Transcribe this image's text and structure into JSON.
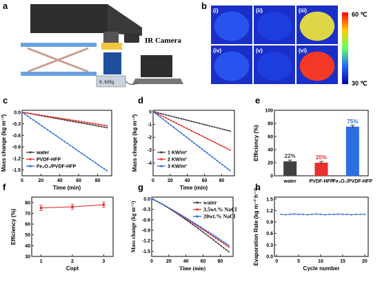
{
  "panels": {
    "a": {
      "label": "a",
      "camera_label": "IR Camera",
      "scale_reading": "9.835g"
    },
    "b": {
      "label": "b",
      "tiles": [
        "(i)",
        "(ii)",
        "(iii)",
        "(iv)",
        "(v)",
        "(vi)"
      ],
      "scale_max": "60 ℃",
      "scale_min": "30 ℃",
      "tile_colors": [
        "#2a55f0",
        "#1e3fe0",
        "#e8e040",
        "#2a55f0",
        "#1e3fe0",
        "#ff3a1e"
      ]
    }
  },
  "chart_data": [
    {
      "id": "c",
      "type": "line",
      "label": "c",
      "xlabel": "Time (min)",
      "ylabel": "Mass change (kg m⁻²)",
      "xlim": [
        0,
        95
      ],
      "ylim": [
        -1.65,
        0.05
      ],
      "xticks": [
        "0",
        "20",
        "40",
        "60",
        "80"
      ],
      "xtick_values": [
        0,
        20,
        40,
        60,
        80
      ],
      "yticks": [
        "0.0",
        "-0.3",
        "-0.6",
        "-0.9",
        "-1.2",
        "-1.5"
      ],
      "ytick_values": [
        0,
        -0.3,
        -0.6,
        -0.9,
        -1.2,
        -1.5
      ],
      "legend_position": "lower-left",
      "series": [
        {
          "name": "water",
          "color": "#404040",
          "x": [
            0,
            90
          ],
          "y": [
            0,
            -0.4
          ]
        },
        {
          "name": "PVDF-HFP",
          "color": "#e8312f",
          "x": [
            0,
            90
          ],
          "y": [
            0,
            -0.35
          ]
        },
        {
          "name": "Fe₃O₄/PVDF-HFP",
          "color": "#2c6fe0",
          "x": [
            0,
            90
          ],
          "y": [
            0,
            -1.52
          ]
        }
      ]
    },
    {
      "id": "d",
      "type": "line",
      "label": "d",
      "xlabel": "Time (min)",
      "ylabel": "Mass change (kg m⁻²)",
      "xlim": [
        0,
        95
      ],
      "ylim": [
        -5.0,
        0.1
      ],
      "xticks": [
        "0",
        "20",
        "40",
        "60",
        "80"
      ],
      "xtick_values": [
        0,
        20,
        40,
        60,
        80
      ],
      "yticks": [
        "0",
        "-1",
        "-2",
        "-3",
        "-4"
      ],
      "ytick_values": [
        0,
        -1,
        -2,
        -3,
        -4
      ],
      "legend_position": "lower-left",
      "series": [
        {
          "name": "1 KW/m²",
          "color": "#404040",
          "x": [
            0,
            90
          ],
          "y": [
            0,
            -1.52
          ]
        },
        {
          "name": "2 KW/m²",
          "color": "#e8312f",
          "x": [
            0,
            90
          ],
          "y": [
            0,
            -3.0
          ]
        },
        {
          "name": "3 KW/m²",
          "color": "#2c6fe0",
          "x": [
            0,
            90
          ],
          "y": [
            0,
            -4.6
          ]
        }
      ]
    },
    {
      "id": "e",
      "type": "bar",
      "label": "e",
      "ylabel": "Efficiency (%)",
      "ylim": [
        0,
        100
      ],
      "yticks": [
        "0",
        "20",
        "40",
        "60",
        "80",
        "100"
      ],
      "ytick_values": [
        0,
        20,
        40,
        60,
        80,
        100
      ],
      "categories": [
        "water",
        "PVDF-HFP",
        "Fe₃O₄/PVDF-HFP"
      ],
      "values": [
        22,
        20,
        75
      ],
      "errors": [
        2,
        2,
        2
      ],
      "value_labels": [
        "22%",
        "20%",
        "75%"
      ],
      "colors": [
        "#404040",
        "#e8312f",
        "#2c6fe0"
      ]
    },
    {
      "id": "f",
      "type": "line",
      "label": "f",
      "xlabel": "Copt",
      "ylabel": "Efficiency (%)",
      "xlim": [
        0.7,
        3.3
      ],
      "ylim": [
        30,
        85
      ],
      "xticks": [
        "1",
        "2",
        "3"
      ],
      "xtick_values": [
        1,
        2,
        3
      ],
      "yticks": [
        "30",
        "40",
        "50",
        "60",
        "70",
        "80"
      ],
      "ytick_values": [
        30,
        40,
        50,
        60,
        70,
        80
      ],
      "series": [
        {
          "name": "",
          "color": "#e8312f",
          "x": [
            1,
            2,
            3
          ],
          "y": [
            75,
            76,
            78
          ],
          "errors": [
            2.5,
            2.5,
            2.5
          ]
        }
      ]
    },
    {
      "id": "g",
      "type": "line",
      "label": "g",
      "xlabel": "Time (min)",
      "ylabel": "Mass change (kg m⁻²)",
      "xlim": [
        0,
        95
      ],
      "ylim": [
        -1.65,
        0.05
      ],
      "xticks": [
        "0",
        "20",
        "40",
        "60",
        "80"
      ],
      "xtick_values": [
        0,
        20,
        40,
        60,
        80
      ],
      "yticks": [
        "0.0",
        "-0.3",
        "-0.6",
        "-0.9",
        "-1.2",
        "-1.5"
      ],
      "ytick_values": [
        0,
        -0.3,
        -0.6,
        -0.9,
        -1.2,
        -1.5
      ],
      "legend_position": "top-right",
      "series": [
        {
          "name": "water",
          "color": "#404040",
          "x": [
            0,
            90
          ],
          "y": [
            0,
            -1.52
          ]
        },
        {
          "name": "3.5wt.% NaCl",
          "color": "#e8312f",
          "x": [
            0,
            90
          ],
          "y": [
            0,
            -1.38
          ]
        },
        {
          "name": "20wt.% NaCl",
          "color": "#2c6fe0",
          "x": [
            0,
            90
          ],
          "y": [
            0,
            -1.33
          ]
        }
      ]
    },
    {
      "id": "h",
      "type": "line",
      "label": "h",
      "xlabel": "Cycle number",
      "ylabel": "Evaporation Rate (kg m⁻² h⁻¹)",
      "xlim": [
        -0.5,
        20.8
      ],
      "ylim": [
        0,
        1.55
      ],
      "xticks": [
        "0",
        "5",
        "10",
        "15",
        "20"
      ],
      "xtick_values": [
        0,
        5,
        10,
        15,
        20
      ],
      "yticks": [
        "0.0",
        "0.3",
        "0.6",
        "0.9",
        "1.2",
        "1.5"
      ],
      "ytick_values": [
        0,
        0.3,
        0.6,
        0.9,
        1.2,
        1.5
      ],
      "series": [
        {
          "name": "",
          "color": "#2c6fe0",
          "x": [
            1,
            2,
            3,
            4,
            5,
            6,
            7,
            8,
            9,
            10,
            11,
            12,
            13,
            14,
            15,
            16,
            17,
            18,
            19,
            20
          ],
          "y": [
            1.1,
            1.09,
            1.1,
            1.11,
            1.1,
            1.1,
            1.09,
            1.1,
            1.11,
            1.1,
            1.09,
            1.1,
            1.1,
            1.11,
            1.1,
            1.1,
            1.09,
            1.1,
            1.1,
            1.1
          ]
        }
      ]
    }
  ]
}
